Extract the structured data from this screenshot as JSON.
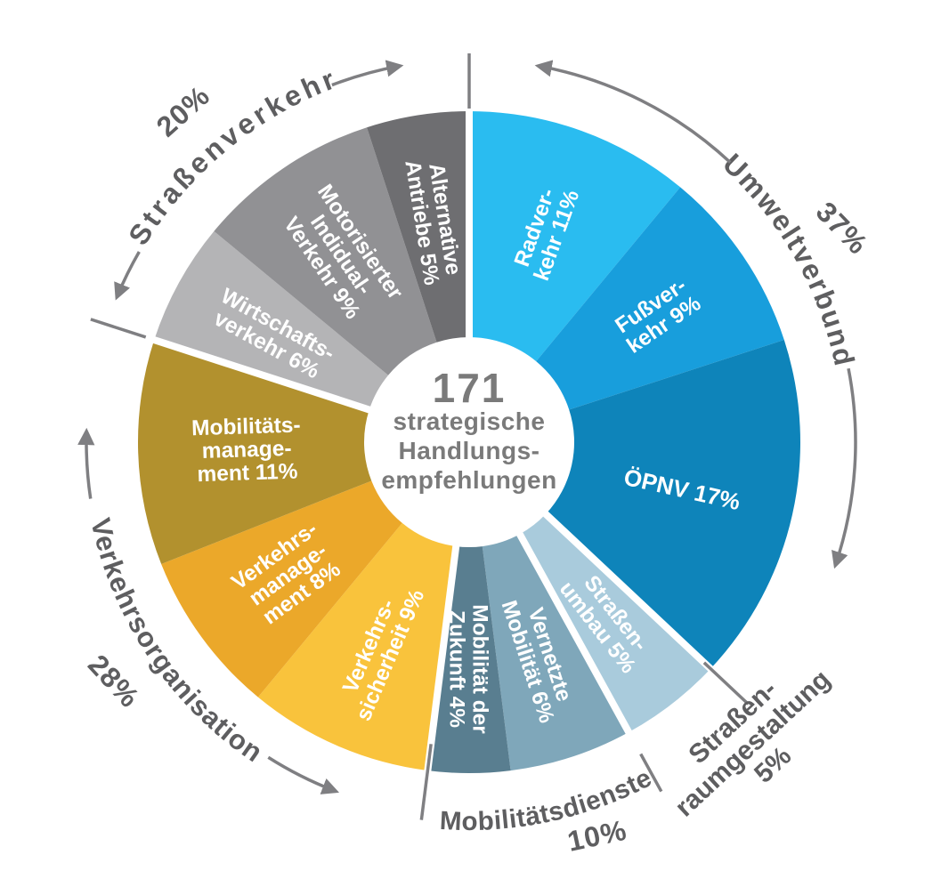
{
  "chart_data": {
    "type": "pie",
    "variant": "donut",
    "title": "171 strategische Handlungsempfehlungen",
    "center": {
      "number": "171",
      "line1": "strategische",
      "line2": "Handlungs-",
      "line3": "empfehlungen"
    },
    "unit": "%",
    "segments": [
      {
        "name": "Radverkehr",
        "value": 11,
        "label_lines": [
          "Radver-",
          "kehr 11%"
        ],
        "color": "#2ABCF0",
        "group": "Umweltverbund"
      },
      {
        "name": "Fußverkehr",
        "value": 9,
        "label_lines": [
          "Fußver-",
          "kehr 9%"
        ],
        "color": "#189EDC",
        "group": "Umweltverbund"
      },
      {
        "name": "ÖPNV",
        "value": 17,
        "label_lines": [
          "ÖPNV 17%"
        ],
        "color": "#0E84BA",
        "group": "Umweltverbund"
      },
      {
        "name": "Straßenumbau",
        "value": 5,
        "label_lines": [
          "Straßen-",
          "umbau 5%"
        ],
        "color": "#A9CBDC",
        "group": "Straßenraumgestaltung"
      },
      {
        "name": "Vernetzte Mobilität",
        "value": 6,
        "label_lines": [
          "Vernetzte",
          "Mobilität 6%"
        ],
        "color": "#7FA7BA",
        "group": "Mobilitätsdienste"
      },
      {
        "name": "Mobilität der Zukunft",
        "value": 4,
        "label_lines": [
          "Mobilität der",
          "Zukunft 4%"
        ],
        "color": "#597E90",
        "group": "Mobilitätsdienste"
      },
      {
        "name": "Verkehrssicherheit",
        "value": 9,
        "label_lines": [
          "Verkehrs-",
          "sicherheit 9%"
        ],
        "color": "#F9C33C",
        "group": "Verkehrsorganisation"
      },
      {
        "name": "Verkehrsmanagement",
        "value": 8,
        "label_lines": [
          "Verkehrs-",
          "manage-",
          "ment 8%"
        ],
        "color": "#EBA82A",
        "group": "Verkehrsorganisation"
      },
      {
        "name": "Mobilitätsmanagement",
        "value": 11,
        "label_lines": [
          "Mobilitäts-",
          "manage-",
          "ment 11%"
        ],
        "color": "#B2912E",
        "group": "Verkehrsorganisation"
      },
      {
        "name": "Wirtschaftsverkehr",
        "value": 6,
        "label_lines": [
          "Wirtschafts-",
          "verkehr 6%"
        ],
        "color": "#B4B4B6",
        "group": "Straßenverkehr"
      },
      {
        "name": "Motorisierter Individualverkehr",
        "value": 9,
        "label_lines": [
          "Motorisierter",
          "Indidual-",
          "Verkehr 9%"
        ],
        "color": "#919194",
        "group": "Straßenverkehr"
      },
      {
        "name": "Alternative Antriebe",
        "value": 5,
        "label_lines": [
          "Alternative",
          "Antriebe 5%"
        ],
        "color": "#6E6E71",
        "group": "Straßenverkehr"
      }
    ],
    "groups": [
      {
        "name": "Umweltverbund",
        "pct": "37%",
        "total": 37
      },
      {
        "name": "Straßenraumgestaltung",
        "pct": "5%",
        "total": 5,
        "label_lines": [
          "Straßen-",
          "raumgestaltung",
          "5%"
        ]
      },
      {
        "name": "Mobilitätsdienste",
        "pct": "10%",
        "total": 10
      },
      {
        "name": "Verkehrsorganisation",
        "pct": "28%",
        "total": 28
      },
      {
        "name": "Straßenverkehr",
        "pct": "20%",
        "total": 20
      }
    ],
    "colors": {
      "background": "#ffffff",
      "segment_text": "#ffffff",
      "group_label_gray": "#5e5e60",
      "arrow_gray": "#7f7f82",
      "center_text_gray": "#7a7a7a"
    },
    "legend": "none",
    "grid": "off"
  }
}
